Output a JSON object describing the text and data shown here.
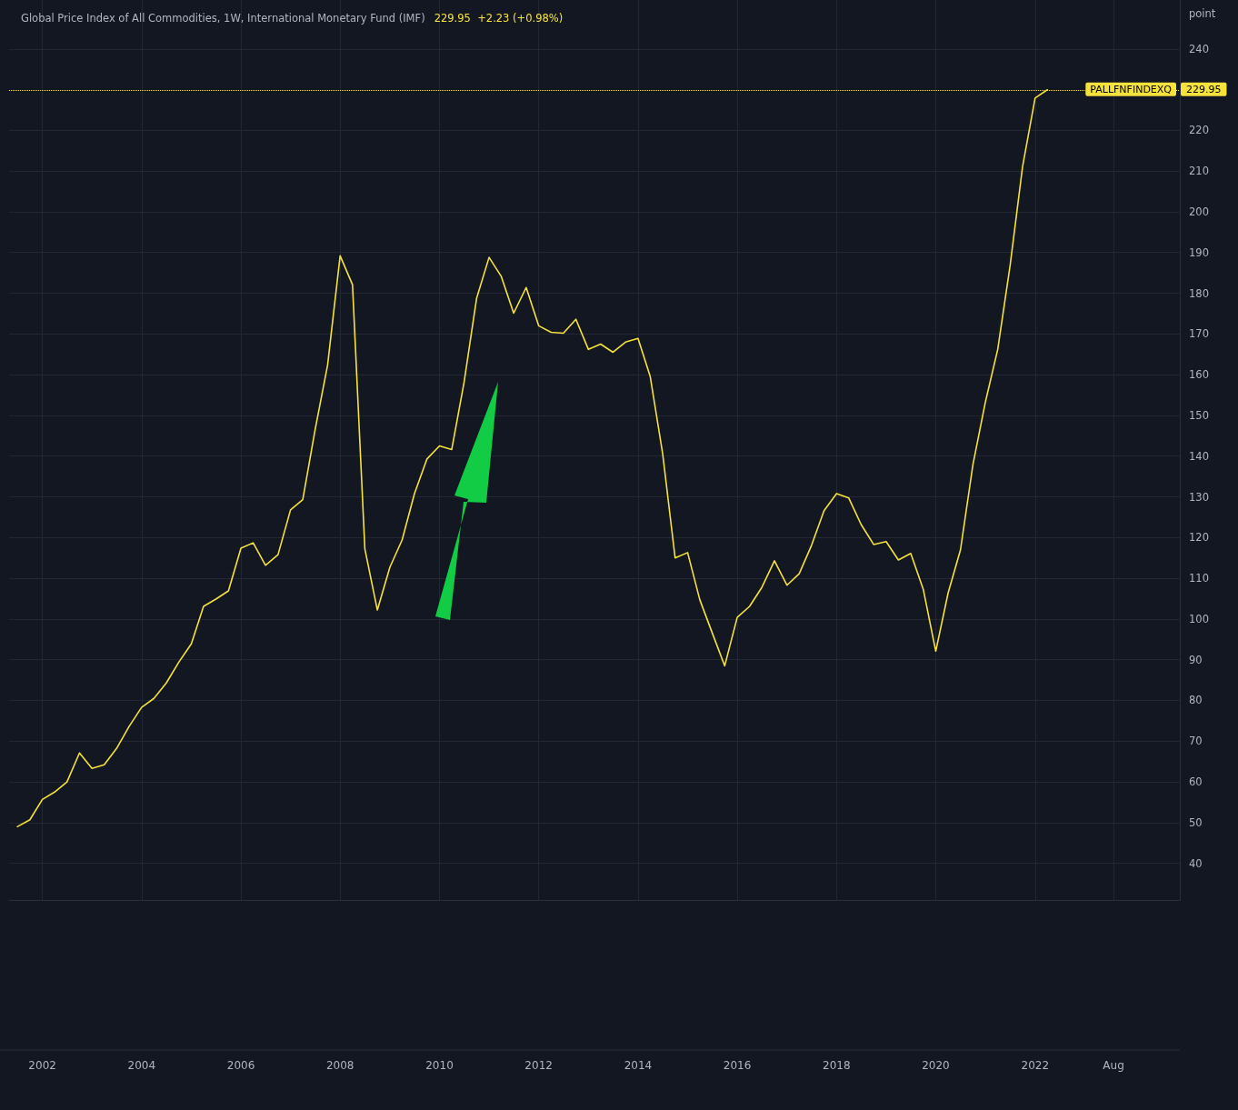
{
  "chart_data": {
    "type": "line",
    "title": "Global Price Index of All Commodities, 1W, International Monetary Fund (IMF)",
    "subtitle": "229.95  +2.23 (+0.98%)",
    "y2label": "point",
    "x": [
      "2001-07",
      "2001-10",
      "2002-01",
      "2002-04",
      "2002-07",
      "2002-10",
      "2003-01",
      "2003-04",
      "2003-07",
      "2003-10",
      "2004-01",
      "2004-04",
      "2004-07",
      "2004-10",
      "2005-01",
      "2005-04",
      "2005-07",
      "2005-10",
      "2006-01",
      "2006-04",
      "2006-07",
      "2006-10",
      "2007-01",
      "2007-04",
      "2007-07",
      "2007-10",
      "2008-01",
      "2008-04",
      "2008-07",
      "2008-10",
      "2009-01",
      "2009-04",
      "2009-07",
      "2009-10",
      "2010-01",
      "2010-04",
      "2010-07",
      "2010-10",
      "2011-01",
      "2011-04",
      "2011-07",
      "2011-10",
      "2012-01",
      "2012-04",
      "2012-07",
      "2012-10",
      "2013-01",
      "2013-04",
      "2013-07",
      "2013-10",
      "2014-01",
      "2014-04",
      "2014-07",
      "2014-10",
      "2015-01",
      "2015-04",
      "2015-07",
      "2015-10",
      "2016-01",
      "2016-04",
      "2016-07",
      "2016-10",
      "2017-01",
      "2017-04",
      "2017-07",
      "2017-10",
      "2018-01",
      "2018-04",
      "2018-07",
      "2018-10",
      "2019-01",
      "2019-04",
      "2019-07",
      "2019-10",
      "2020-01",
      "2020-04",
      "2020-07",
      "2020-10",
      "2021-01",
      "2021-04",
      "2021-07",
      "2021-10",
      "2022-01",
      "2022-04"
    ],
    "series": [
      {
        "color": "#f5e23a",
        "axis": "y2",
        "values": [
          49,
          50.7,
          55.7,
          57.5,
          60,
          67.1,
          63.3,
          64.2,
          68.2,
          73.6,
          78.3,
          80.5,
          84.3,
          89.4,
          93.9,
          103.1,
          104.9,
          106.9,
          117.4,
          118.7,
          113.2,
          115.8,
          126.8,
          129.3,
          146.5,
          162.4,
          189.2,
          182.1,
          117.2,
          102.2,
          112.7,
          119.4,
          130.8,
          139.3,
          142.5,
          141.6,
          158.1,
          178.7,
          188.8,
          184.1,
          175.1,
          181.4,
          172,
          170.4,
          170.2,
          173.6,
          166.2,
          167.5,
          165.5,
          168,
          168.9,
          159.5,
          140.7,
          115,
          116.3,
          104.7,
          96.6,
          88.5,
          100.4,
          103.1,
          107.8,
          114.3,
          108.3,
          111.1,
          118.1,
          126.6,
          130.8,
          129.7,
          123.2,
          118.3,
          119,
          114.5,
          116.1,
          107.3,
          92.1,
          106.4,
          117,
          138,
          153.4,
          166.2,
          186.8,
          211.1,
          227.9,
          229.95
        ]
      }
    ],
    "xlim": [
      "2001-05-01",
      "2024-12-01"
    ],
    "xticks": [
      "2002",
      "2004",
      "2006",
      "2008",
      "2010",
      "2012",
      "2014",
      "2016",
      "2018",
      "2020",
      "2022",
      {
        "value": "2023-08",
        "label": "Aug"
      }
    ],
    "y2lim": [
      31,
      252
    ],
    "y2ticks": [
      40,
      50,
      60,
      70,
      80,
      90,
      100,
      110,
      120,
      130,
      140,
      150,
      160,
      170,
      180,
      190,
      200,
      210,
      220,
      240
    ],
    "grid": true,
    "marker": "none",
    "line_style": "solid",
    "ref_lines": [
      {
        "axis": "y2",
        "value": 229.95,
        "label": "PALLFNFINDEXQ",
        "color": "#f5e23a",
        "line_style": "dotted"
      }
    ],
    "annotations": [
      "229.95"
    ]
  }
}
